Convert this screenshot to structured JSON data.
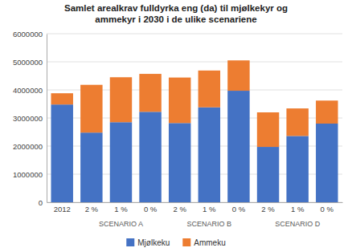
{
  "chart_data": {
    "type": "bar",
    "title": "Samlet arealkrav fulldyrka eng (da) til mjølkekyr og\nammekyr i 2030 i de ulike scenariene",
    "categories": [
      "2012",
      "2 %",
      "1 %",
      "0 %",
      "2 %",
      "1 %",
      "0 %",
      "2 %",
      "1 %",
      "0 %"
    ],
    "annotations": [
      "SCENARIO A",
      "SCENARIO B",
      "SCENARIO D"
    ],
    "series": [
      {
        "name": "Mjølkeku",
        "color": "#4472C4",
        "values": [
          3480000,
          2480000,
          2850000,
          3220000,
          2820000,
          3380000,
          3970000,
          1970000,
          2360000,
          2800000
        ]
      },
      {
        "name": "Ammeku",
        "color": "#ED7D31",
        "values": [
          400000,
          1700000,
          1600000,
          1350000,
          1620000,
          1310000,
          1080000,
          1230000,
          980000,
          820000
        ]
      }
    ],
    "stacked": true,
    "ylim": [
      0,
      6000000
    ],
    "yticks": [
      0,
      1000000,
      2000000,
      3000000,
      4000000,
      5000000,
      6000000
    ],
    "grid": true,
    "legend": "bottom"
  }
}
